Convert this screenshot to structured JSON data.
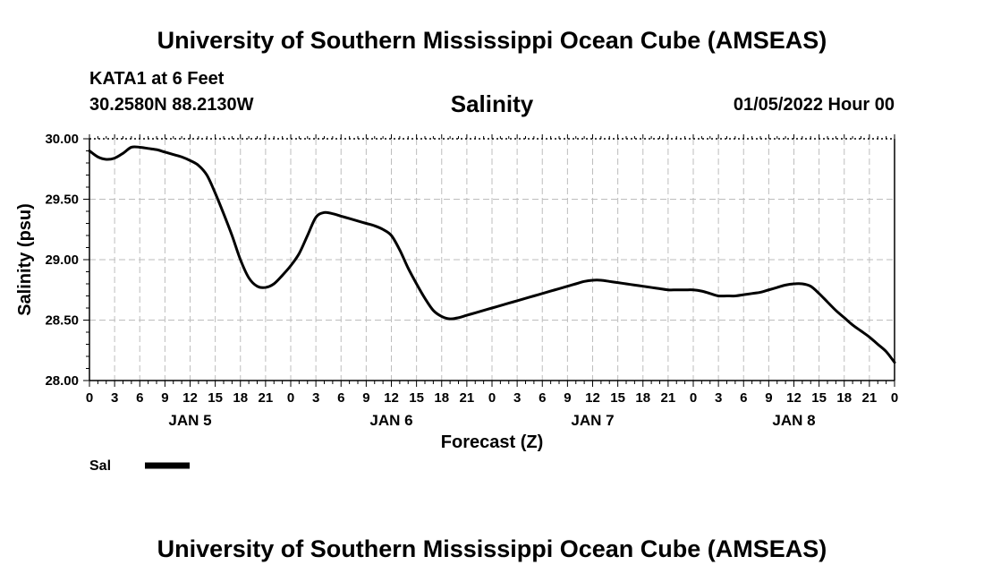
{
  "header": {
    "title": "University of Southern Mississippi Ocean Cube (AMSEAS)",
    "station": "KATA1 at 6 Feet",
    "coords": "30.2580N  88.2130W",
    "chart_title": "Salinity",
    "datetime": "01/05/2022 Hour 00"
  },
  "footer": {
    "title": "University of Southern Mississippi Ocean Cube (AMSEAS)"
  },
  "chart_data": {
    "type": "line",
    "title": "Salinity",
    "xlabel": "Forecast (Z)",
    "ylabel": "Salinity (psu)",
    "ylim": [
      28.0,
      30.0
    ],
    "xlim": [
      0,
      96
    ],
    "yticks": [
      "28.00",
      "28.50",
      "29.00",
      "29.50",
      "30.00"
    ],
    "ytick_values": [
      28.0,
      28.5,
      29.0,
      29.5,
      30.0
    ],
    "xtick_labels": [
      "0",
      "3",
      "6",
      "9",
      "12",
      "15",
      "18",
      "21",
      "0",
      "3",
      "6",
      "9",
      "12",
      "15",
      "18",
      "21",
      "0",
      "3",
      "6",
      "9",
      "12",
      "15",
      "18",
      "21",
      "0",
      "3",
      "6",
      "9",
      "12",
      "15",
      "18",
      "21",
      "0"
    ],
    "day_labels": [
      "JAN 5",
      "JAN 6",
      "JAN 7",
      "JAN 8"
    ],
    "grid": true,
    "legend": "bottom-left",
    "series": [
      {
        "name": "Sal",
        "color": "#000000",
        "x": [
          0,
          1,
          2,
          3,
          4,
          5,
          6,
          7,
          8,
          9,
          10,
          11,
          12,
          13,
          14,
          15,
          16,
          17,
          18,
          19,
          20,
          21,
          22,
          23,
          24,
          25,
          26,
          27,
          28,
          29,
          30,
          31,
          32,
          33,
          34,
          35,
          36,
          37,
          38,
          39,
          40,
          41,
          42,
          43,
          44,
          45,
          46,
          47,
          48,
          49,
          50,
          51,
          52,
          53,
          54,
          55,
          56,
          57,
          58,
          59,
          60,
          61,
          62,
          63,
          64,
          65,
          66,
          67,
          68,
          69,
          70,
          71,
          72,
          73,
          74,
          75,
          76,
          77,
          78,
          79,
          80,
          81,
          82,
          83,
          84,
          85,
          86,
          87,
          88,
          89,
          90,
          91,
          92,
          93,
          94,
          95,
          96
        ],
        "values": [
          29.9,
          29.85,
          29.83,
          29.84,
          29.88,
          29.93,
          29.93,
          29.92,
          29.91,
          29.89,
          29.87,
          29.85,
          29.82,
          29.78,
          29.7,
          29.55,
          29.38,
          29.2,
          29.0,
          28.85,
          28.78,
          28.77,
          28.8,
          28.87,
          28.95,
          29.05,
          29.2,
          29.35,
          29.39,
          29.38,
          29.36,
          29.34,
          29.32,
          29.3,
          29.28,
          29.25,
          29.2,
          29.08,
          28.93,
          28.8,
          28.68,
          28.58,
          28.53,
          28.51,
          28.52,
          28.54,
          28.56,
          28.58,
          28.6,
          28.62,
          28.64,
          28.66,
          28.68,
          28.7,
          28.72,
          28.74,
          28.76,
          28.78,
          28.8,
          28.82,
          28.83,
          28.83,
          28.82,
          28.81,
          28.8,
          28.79,
          28.78,
          28.77,
          28.76,
          28.75,
          28.75,
          28.75,
          28.75,
          28.74,
          28.72,
          28.7,
          28.7,
          28.7,
          28.71,
          28.72,
          28.73,
          28.75,
          28.77,
          28.79,
          28.8,
          28.8,
          28.78,
          28.72,
          28.65,
          28.58,
          28.52,
          28.46,
          28.41,
          28.36,
          28.3,
          28.24,
          28.15
        ]
      }
    ]
  }
}
